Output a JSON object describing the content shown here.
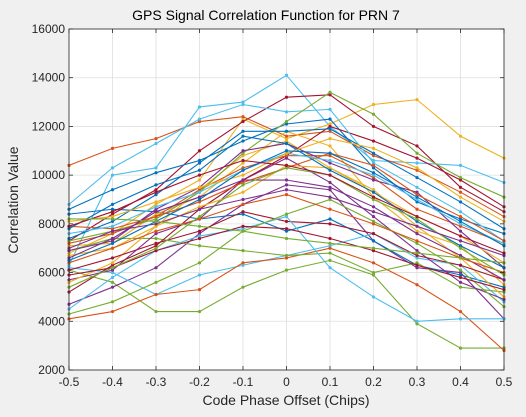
{
  "chart_data": {
    "type": "line",
    "title": "GPS Signal Correlation Function for PRN 7",
    "xlabel": "Code Phase Offset (Chips)",
    "ylabel": "Correlation Value",
    "xlim": [
      -0.5,
      0.5
    ],
    "ylim": [
      2000,
      16000
    ],
    "xticks": [
      -0.5,
      -0.4,
      -0.3,
      -0.2,
      -0.1,
      0,
      0.1,
      0.2,
      0.3,
      0.4,
      0.5
    ],
    "xtick_labels": [
      "-0.5",
      "-0.4",
      "-0.3",
      "-0.2",
      "-0.1",
      "0",
      "0.1",
      "0.2",
      "0.3",
      "0.4",
      "0.5"
    ],
    "yticks": [
      2000,
      4000,
      6000,
      8000,
      10000,
      12000,
      14000,
      16000
    ],
    "ytick_labels": [
      "2000",
      "4000",
      "6000",
      "8000",
      "10000",
      "12000",
      "14000",
      "16000"
    ],
    "grid": true,
    "x": [
      -0.5,
      -0.4,
      -0.3,
      -0.2,
      -0.1,
      0,
      0.1,
      0.2,
      0.3,
      0.4,
      0.5
    ],
    "series": [
      {
        "color": "#4DBEEE",
        "values": [
          6300,
          10000,
          10300,
          12800,
          13000,
          14100,
          12000,
          10600,
          10500,
          10400,
          9700
        ]
      },
      {
        "color": "#EDB120",
        "values": [
          6800,
          7600,
          8800,
          9800,
          12300,
          11500,
          12100,
          12900,
          13100,
          11600,
          10700
        ]
      },
      {
        "color": "#D95319",
        "values": [
          10400,
          11100,
          11500,
          12200,
          12400,
          11600,
          11800,
          10800,
          10200,
          9300,
          8300
        ]
      },
      {
        "color": "#77AC30",
        "values": [
          6100,
          5600,
          4400,
          4400,
          5400,
          6100,
          6500,
          5900,
          3900,
          2900,
          2900
        ]
      },
      {
        "color": "#7E2F8E",
        "values": [
          4700,
          5400,
          6200,
          7600,
          8800,
          9600,
          9400,
          7300,
          6200,
          6000,
          4100
        ]
      },
      {
        "color": "#0072BD",
        "values": [
          8400,
          8600,
          8500,
          8200,
          8400,
          7700,
          8200,
          7300,
          6300,
          5900,
          5400
        ]
      },
      {
        "color": "#A2142F",
        "values": [
          7300,
          8400,
          9400,
          11000,
          12200,
          13200,
          13300,
          12000,
          11200,
          9500,
          8500
        ]
      },
      {
        "color": "#4DBEEE",
        "values": [
          6200,
          6000,
          5100,
          5900,
          6300,
          6700,
          7100,
          7600,
          6600,
          6300,
          4800
        ]
      },
      {
        "color": "#EDB120",
        "values": [
          7100,
          7200,
          8400,
          9100,
          10500,
          11800,
          11200,
          9100,
          7700,
          7100,
          5500
        ]
      },
      {
        "color": "#D95319",
        "values": [
          4100,
          4400,
          5100,
          5300,
          6400,
          6600,
          7000,
          6400,
          5500,
          4400,
          2800
        ]
      },
      {
        "color": "#77AC30",
        "values": [
          6900,
          7400,
          7400,
          7100,
          6900,
          6700,
          6800,
          6000,
          6400,
          5400,
          5200
        ]
      },
      {
        "color": "#7E2F8E",
        "values": [
          5700,
          6100,
          7600,
          8200,
          9800,
          10700,
          9700,
          8300,
          6900,
          5600,
          4900
        ]
      },
      {
        "color": "#0072BD",
        "values": [
          8600,
          9400,
          10100,
          10600,
          11400,
          12100,
          12300,
          10300,
          8900,
          8200,
          7600
        ]
      },
      {
        "color": "#A2142F",
        "values": [
          5200,
          6300,
          7100,
          8600,
          9800,
          10800,
          12000,
          11400,
          10700,
          9800,
          8700
        ]
      },
      {
        "color": "#4DBEEE",
        "values": [
          8800,
          10300,
          11300,
          12300,
          12900,
          12600,
          12700,
          10500,
          9500,
          8500,
          7300
        ]
      },
      {
        "color": "#EDB120",
        "values": [
          5600,
          6400,
          7900,
          9400,
          10800,
          11400,
          10300,
          9400,
          7900,
          6600,
          5000
        ]
      },
      {
        "color": "#D95319",
        "values": [
          7900,
          7800,
          8300,
          9400,
          10300,
          10800,
          10800,
          9900,
          8600,
          7900,
          7200
        ]
      },
      {
        "color": "#77AC30",
        "values": [
          7300,
          7700,
          8200,
          9300,
          10900,
          12200,
          13400,
          12500,
          10900,
          9900,
          9100
        ]
      },
      {
        "color": "#7E2F8E",
        "values": [
          6900,
          7300,
          8600,
          9500,
          11000,
          11300,
          10500,
          9800,
          9300,
          7700,
          6200
        ]
      },
      {
        "color": "#0072BD",
        "values": [
          7400,
          8100,
          9200,
          10500,
          11800,
          11800,
          11900,
          10900,
          9900,
          8900,
          7800
        ]
      },
      {
        "color": "#A2142F",
        "values": [
          6100,
          6600,
          7200,
          7700,
          8500,
          8100,
          8000,
          7600,
          6700,
          6300,
          5700
        ]
      },
      {
        "color": "#4DBEEE",
        "values": [
          4500,
          5800,
          6900,
          7500,
          7800,
          8300,
          6200,
          5000,
          4000,
          4100,
          4100
        ]
      },
      {
        "color": "#EDB120",
        "values": [
          6700,
          7000,
          7900,
          8700,
          9300,
          10400,
          10300,
          9300,
          8300,
          7500,
          6400
        ]
      },
      {
        "color": "#D95319",
        "values": [
          7200,
          7600,
          8300,
          8900,
          9700,
          10300,
          10900,
          10400,
          9200,
          8300,
          7300
        ]
      },
      {
        "color": "#77AC30",
        "values": [
          4300,
          4800,
          5600,
          6400,
          7700,
          8400,
          9000,
          8100,
          7200,
          6100,
          4600
        ]
      },
      {
        "color": "#7E2F8E",
        "values": [
          6600,
          7400,
          8500,
          9100,
          9800,
          9800,
          9500,
          8700,
          7600,
          6700,
          5700
        ]
      },
      {
        "color": "#0072BD",
        "values": [
          7800,
          8800,
          9600,
          10200,
          11600,
          11300,
          10200,
          9300,
          8100,
          7100,
          6200
        ]
      },
      {
        "color": "#A2142F",
        "values": [
          5900,
          6200,
          6900,
          7400,
          7900,
          7800,
          7400,
          6900,
          6300,
          5800,
          5300
        ]
      },
      {
        "color": "#4DBEEE",
        "values": [
          7600,
          7900,
          8700,
          9300,
          10200,
          10900,
          10600,
          10000,
          9000,
          8000,
          7200
        ]
      },
      {
        "color": "#EDB120",
        "values": [
          8100,
          8300,
          8900,
          9500,
          10000,
          10900,
          11500,
          11100,
          10300,
          9100,
          8100
        ]
      },
      {
        "color": "#D95319",
        "values": [
          6400,
          7000,
          7700,
          8200,
          8800,
          9200,
          8600,
          8000,
          7300,
          6600,
          6000
        ]
      },
      {
        "color": "#77AC30",
        "values": [
          5400,
          6200,
          7000,
          8300,
          9600,
          10300,
          10000,
          9000,
          8200,
          7000,
          5900
        ]
      },
      {
        "color": "#7E2F8E",
        "values": [
          7000,
          7700,
          8000,
          8600,
          9000,
          9400,
          9100,
          8500,
          7900,
          7300,
          6700
        ]
      },
      {
        "color": "#0072BD",
        "values": [
          6500,
          7200,
          8100,
          9000,
          10200,
          11000,
          10900,
          10100,
          9100,
          8100,
          7100
        ]
      },
      {
        "color": "#A2142F",
        "values": [
          7900,
          8500,
          9300,
          10000,
          10600,
          10400,
          10000,
          9100,
          8300,
          7500,
          6800
        ]
      },
      {
        "color": "#77AC30",
        "values": [
          8200,
          8200,
          8100,
          7900,
          7700,
          7400,
          7200,
          7000,
          6800,
          6600,
          6400
        ]
      }
    ]
  }
}
